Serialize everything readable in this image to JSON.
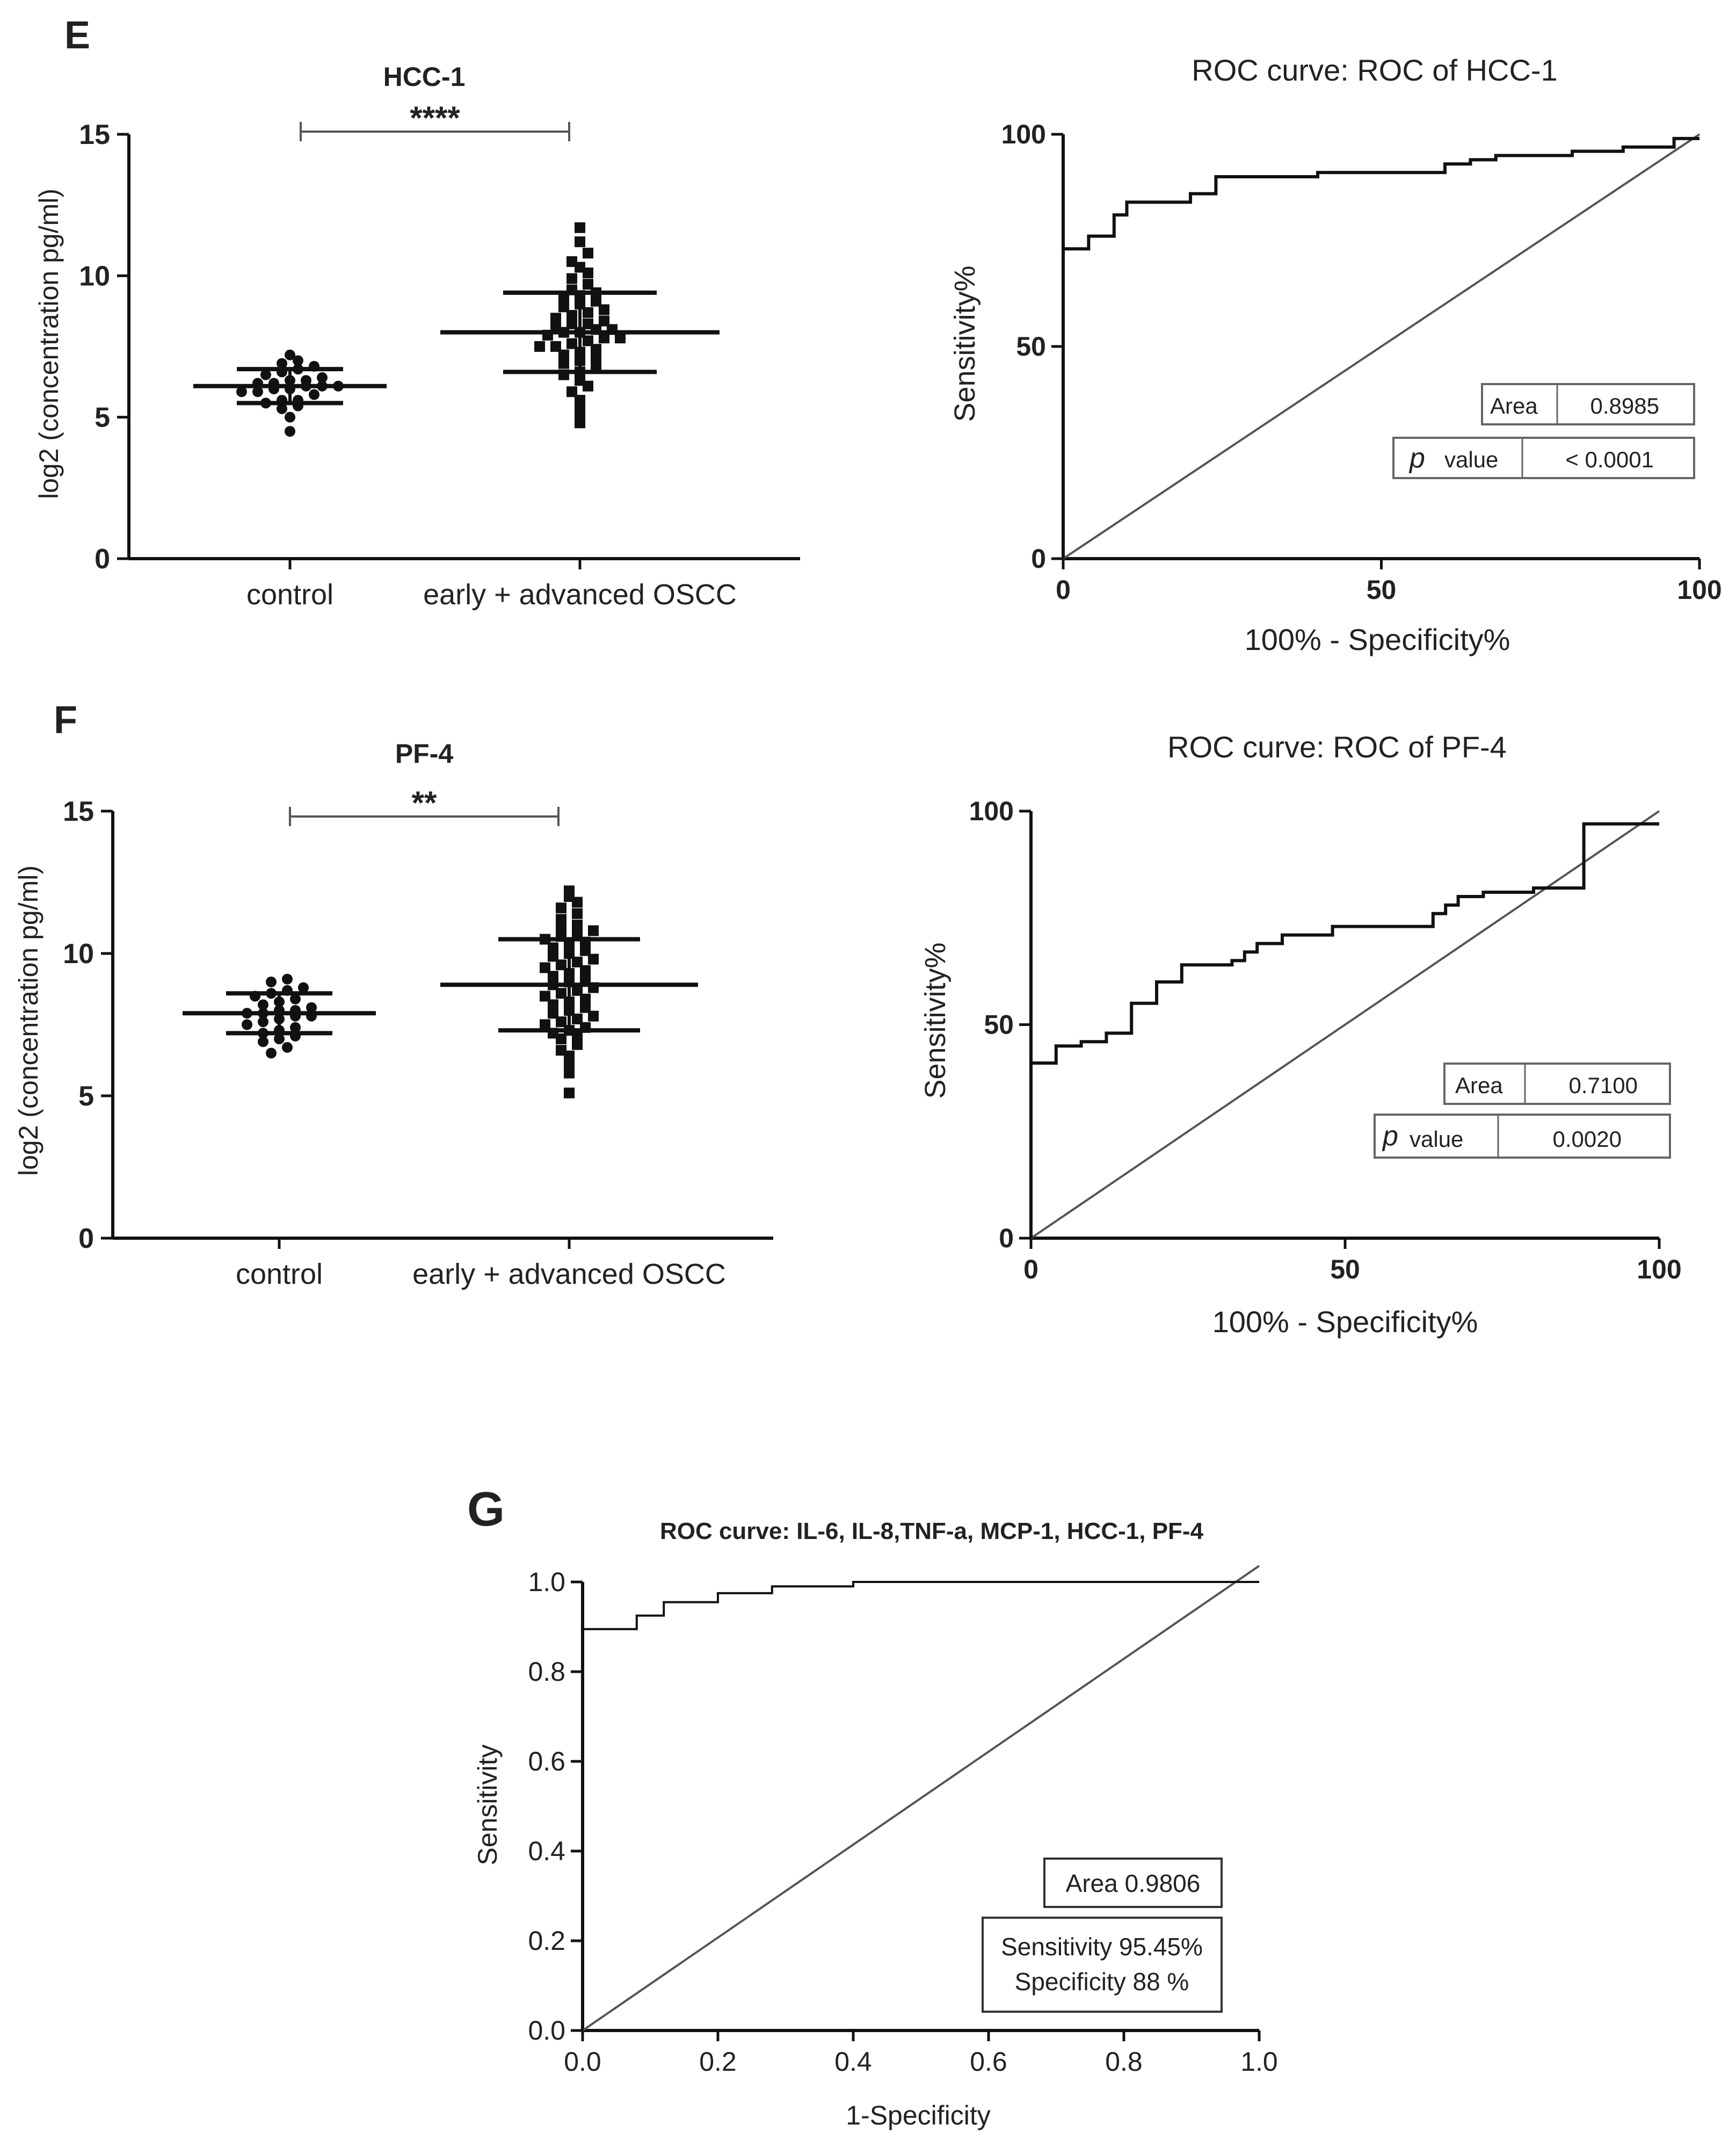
{
  "colors": {
    "ink": "#111111",
    "diag": "#555555",
    "box": "#666666",
    "bg": "#ffffff"
  },
  "panels": {
    "E": {
      "letter": "E",
      "scatter_title": "HCC-1",
      "stars": "****",
      "ylabel": "log2 (concentration pg/ml)",
      "roc_title": "ROC curve: ROC of HCC-1",
      "roc_ylabel": "Sensitivity%",
      "roc_xlabel": "100% - Specificity%",
      "area_label": "Area",
      "area_value": "0.8985",
      "p_label": "p",
      "p_value_label": "value",
      "p_value": "< 0.0001"
    },
    "F": {
      "letter": "F",
      "scatter_title": "PF-4",
      "stars": "**",
      "ylabel": "log2 (concentration pg/ml)",
      "roc_title": "ROC curve: ROC of PF-4",
      "roc_ylabel": "Sensitivity%",
      "roc_xlabel": "100% - Specificity%",
      "area_label": "Area",
      "area_value": "0.7100",
      "p_label": "p",
      "p_value_label": "value",
      "p_value": "0.0020"
    },
    "G": {
      "letter": "G",
      "roc_title": "ROC curve: IL-6, IL-8,TNF-a, MCP-1, HCC-1, PF-4",
      "ylabel": "Sensitivity",
      "xlabel": "1-Specificity",
      "area_text": "Area  0.9806",
      "sens_text": "Sensitivity 95.45%",
      "spec_text": "Specificity 88 %"
    }
  },
  "chart_data": [
    {
      "id": "E-scatter",
      "type": "scatter",
      "title": "HCC-1",
      "categories": [
        "control",
        "early + advanced OSCC"
      ],
      "ylabel": "log2 (concentration pg/ml)",
      "ylim": [
        0,
        15
      ],
      "yticks": [
        0,
        5,
        10,
        15
      ],
      "significance": "****",
      "groups": [
        {
          "name": "control",
          "marker": "circle",
          "mean": 6.1,
          "sd": 0.6,
          "points": [
            4.5,
            5.0,
            5.3,
            5.4,
            5.5,
            5.6,
            5.6,
            5.8,
            5.9,
            5.9,
            6.0,
            6.0,
            6.1,
            6.1,
            6.1,
            6.2,
            6.2,
            6.3,
            6.3,
            6.4,
            6.5,
            6.6,
            6.7,
            6.8,
            6.9,
            7.0,
            7.2
          ]
        },
        {
          "name": "early + advanced OSCC",
          "marker": "square",
          "mean": 8.0,
          "sd": 1.4,
          "points": [
            4.8,
            5.0,
            5.3,
            5.6,
            5.9,
            6.1,
            6.3,
            6.5,
            6.6,
            6.8,
            6.9,
            7.0,
            7.1,
            7.2,
            7.3,
            7.4,
            7.5,
            7.5,
            7.6,
            7.7,
            7.8,
            7.8,
            7.9,
            8.0,
            8.0,
            8.1,
            8.1,
            8.2,
            8.3,
            8.3,
            8.4,
            8.5,
            8.6,
            8.7,
            8.8,
            8.9,
            9.0,
            9.1,
            9.2,
            9.3,
            9.4,
            9.5,
            9.7,
            9.9,
            10.1,
            10.3,
            10.5,
            10.8,
            11.2,
            11.7
          ]
        }
      ]
    },
    {
      "id": "E-roc",
      "type": "line",
      "title": "ROC curve: ROC of HCC-1",
      "xlabel": "100% - Specificity%",
      "ylabel": "Sensitivity%",
      "xlim": [
        0,
        100
      ],
      "ylim": [
        0,
        100
      ],
      "xticks": [
        0,
        50,
        100
      ],
      "yticks": [
        0,
        50,
        100
      ],
      "area": 0.8985,
      "p_value": "< 0.0001",
      "x": [
        0,
        0,
        4,
        4,
        8,
        8,
        10,
        10,
        20,
        20,
        24,
        24,
        40,
        40,
        60,
        60,
        64,
        64,
        68,
        68,
        80,
        80,
        88,
        88,
        96,
        96,
        100
      ],
      "y": [
        0,
        73,
        73,
        76,
        76,
        81,
        81,
        84,
        84,
        86,
        86,
        90,
        90,
        91,
        91,
        93,
        93,
        94,
        94,
        95,
        95,
        96,
        96,
        97,
        97,
        99,
        99
      ]
    },
    {
      "id": "F-scatter",
      "type": "scatter",
      "title": "PF-4",
      "categories": [
        "control",
        "early + advanced OSCC"
      ],
      "ylabel": "log2 (concentration pg/ml)",
      "ylim": [
        0,
        15
      ],
      "yticks": [
        0,
        5,
        10,
        15
      ],
      "significance": "**",
      "groups": [
        {
          "name": "control",
          "marker": "circle",
          "mean": 7.9,
          "sd": 0.7,
          "points": [
            6.5,
            6.7,
            6.9,
            7.0,
            7.1,
            7.2,
            7.3,
            7.4,
            7.5,
            7.6,
            7.7,
            7.8,
            7.8,
            7.9,
            7.9,
            8.0,
            8.0,
            8.1,
            8.2,
            8.3,
            8.4,
            8.5,
            8.6,
            8.7,
            8.8,
            9.0,
            9.1
          ]
        },
        {
          "name": "early + advanced OSCC",
          "marker": "square",
          "mean": 8.9,
          "sd": 1.6,
          "points": [
            5.1,
            5.8,
            6.1,
            6.4,
            6.6,
            6.8,
            7.0,
            7.1,
            7.2,
            7.3,
            7.4,
            7.5,
            7.6,
            7.7,
            7.8,
            7.9,
            8.0,
            8.1,
            8.2,
            8.3,
            8.4,
            8.5,
            8.6,
            8.7,
            8.8,
            8.9,
            9.0,
            9.1,
            9.2,
            9.3,
            9.4,
            9.5,
            9.6,
            9.7,
            9.8,
            9.9,
            10.0,
            10.1,
            10.2,
            10.3,
            10.4,
            10.5,
            10.6,
            10.7,
            10.8,
            10.9,
            11.0,
            11.2,
            11.4,
            11.6,
            11.8,
            12.0,
            12.2
          ]
        }
      ]
    },
    {
      "id": "F-roc",
      "type": "line",
      "title": "ROC curve: ROC of PF-4",
      "xlabel": "100% - Specificity%",
      "ylabel": "Sensitivity%",
      "xlim": [
        0,
        100
      ],
      "ylim": [
        0,
        100
      ],
      "xticks": [
        0,
        50,
        100
      ],
      "yticks": [
        0,
        50,
        100
      ],
      "area": 0.71,
      "p_value": "0.0020",
      "x": [
        0,
        0,
        4,
        4,
        8,
        8,
        12,
        12,
        16,
        16,
        20,
        20,
        24,
        24,
        32,
        32,
        34,
        34,
        36,
        36,
        40,
        40,
        48,
        48,
        64,
        64,
        66,
        66,
        68,
        68,
        72,
        72,
        80,
        80,
        88,
        88,
        100
      ],
      "y": [
        0,
        41,
        41,
        45,
        45,
        46,
        46,
        48,
        48,
        55,
        55,
        60,
        60,
        64,
        64,
        65,
        65,
        67,
        67,
        69,
        69,
        71,
        71,
        73,
        73,
        76,
        76,
        78,
        78,
        80,
        80,
        81,
        81,
        82,
        82,
        97,
        97
      ]
    },
    {
      "id": "G-roc",
      "type": "line",
      "title": "ROC curve: IL-6, IL-8,TNF-a, MCP-1, HCC-1, PF-4",
      "xlabel": "1-Specificity",
      "ylabel": "Sensitivity",
      "xlim": [
        0,
        1
      ],
      "ylim": [
        0,
        1
      ],
      "xticks": [
        0,
        0.2,
        0.4,
        0.6,
        0.8,
        1.0
      ],
      "yticks": [
        0,
        0.2,
        0.4,
        0.6,
        0.8,
        1.0
      ],
      "area": 0.9806,
      "sensitivity": "95.45%",
      "specificity": "88 %",
      "x": [
        0,
        0,
        0.08,
        0.08,
        0.12,
        0.12,
        0.2,
        0.2,
        0.28,
        0.28,
        0.4,
        0.4,
        1.0
      ],
      "y": [
        0,
        0.895,
        0.895,
        0.925,
        0.925,
        0.955,
        0.955,
        0.975,
        0.975,
        0.99,
        0.99,
        1.0,
        1.0
      ]
    }
  ]
}
